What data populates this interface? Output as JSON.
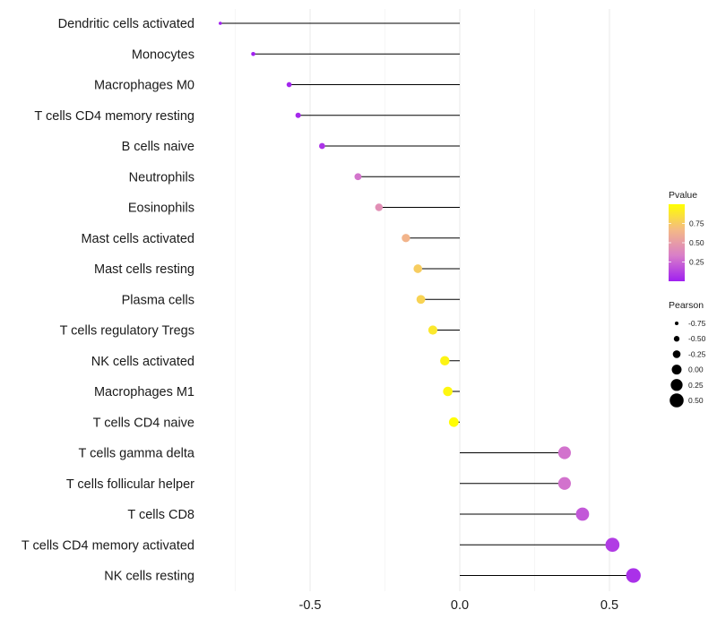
{
  "chart_data": {
    "type": "lollipop",
    "title": "",
    "xlabel": "",
    "ylabel": "",
    "xlim": [
      -0.8,
      0.6
    ],
    "xticks": [
      -0.5,
      0.0,
      0.5
    ],
    "xtick_labels": [
      "-0.5",
      "0.0",
      "0.5"
    ],
    "grid": true,
    "categories": [
      "Dendritic cells activated",
      "Monocytes",
      "Macrophages M0",
      "T cells CD4 memory resting",
      "B cells naive",
      "Neutrophils",
      "Eosinophils",
      "Mast cells activated",
      "Mast cells resting",
      "Plasma cells",
      "T cells regulatory  Tregs ",
      "NK cells activated",
      "Macrophages M1",
      "T cells CD4 naive",
      "T cells gamma delta",
      "T cells follicular helper",
      "T cells CD8",
      "T cells CD4 memory activated",
      "NK cells resting"
    ],
    "values": [
      -0.8,
      -0.69,
      -0.57,
      -0.54,
      -0.46,
      -0.34,
      -0.27,
      -0.18,
      -0.14,
      -0.13,
      -0.09,
      -0.05,
      -0.04,
      -0.02,
      0.35,
      0.35,
      0.41,
      0.51,
      0.58
    ],
    "pvalues": [
      0.001,
      0.004,
      0.02,
      0.03,
      0.07,
      0.3,
      0.43,
      0.64,
      0.76,
      0.79,
      0.89,
      0.95,
      0.96,
      0.99,
      0.29,
      0.29,
      0.2,
      0.1,
      0.06
    ],
    "legend_pvalue": {
      "title": "Pvalue",
      "ticks": [
        0.25,
        0.5,
        0.75
      ],
      "tick_labels": [
        "0.25",
        "0.50",
        "0.75"
      ],
      "range": [
        0.0,
        1.0
      ],
      "colors": [
        "#a020f0",
        "#d97ec8",
        "#f4b986",
        "#ffff00"
      ]
    },
    "legend_pearson": {
      "title": "Pearson",
      "values": [
        -0.75,
        -0.5,
        -0.25,
        0.0,
        0.25,
        0.5
      ],
      "labels": [
        "-0.75",
        "-0.50",
        "-0.25",
        "0.00",
        "0.25",
        "0.50"
      ]
    },
    "legend_position": "right"
  }
}
